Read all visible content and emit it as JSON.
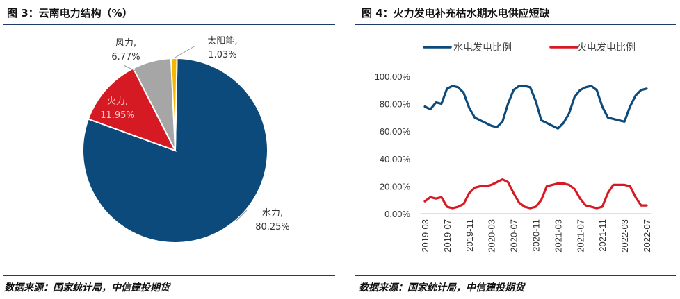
{
  "left_panel": {
    "title": "图 3：云南电力结构（%）",
    "source": "数据来源：国家统计局，中信建投期货"
  },
  "right_panel": {
    "title": "图 4：火力发电补充枯水期水电供应短缺",
    "source": "数据来源：国家统计局，中信建投期货"
  },
  "chart_data": [
    {
      "type": "pie",
      "title": "",
      "slices": [
        {
          "name": "水力",
          "value_label": "80.25%",
          "value": 80.25,
          "color": "#0b4a7a"
        },
        {
          "name": "火力",
          "value_label": "11.95%",
          "value": 11.95,
          "color": "#d51a24"
        },
        {
          "name": "风力",
          "value_label": "6.77%",
          "value": 6.77,
          "color": "#a6a6a6"
        },
        {
          "name": "太阳能",
          "value_label": "1.03%",
          "value": 1.03,
          "color": "#f5b800"
        }
      ]
    },
    {
      "type": "line",
      "title": "",
      "legend_position": "top",
      "ylim": [
        0,
        100
      ],
      "y_ticks": [
        {
          "value": 0,
          "label": "0.00%"
        },
        {
          "value": 20,
          "label": "20.00%"
        },
        {
          "value": 40,
          "label": "40.00%"
        },
        {
          "value": 60,
          "label": "60.00%"
        },
        {
          "value": 80,
          "label": "80.00%"
        },
        {
          "value": 100,
          "label": "100.00%"
        }
      ],
      "x": [
        "2019-03",
        "2019-04",
        "2019-05",
        "2019-06",
        "2019-07",
        "2019-08",
        "2019-09",
        "2019-10",
        "2019-11",
        "2019-12",
        "2020-01",
        "2020-02",
        "2020-03",
        "2020-04",
        "2020-05",
        "2020-06",
        "2020-07",
        "2020-08",
        "2020-09",
        "2020-10",
        "2020-11",
        "2020-12",
        "2021-01",
        "2021-02",
        "2021-03",
        "2021-04",
        "2021-05",
        "2021-06",
        "2021-07",
        "2021-08",
        "2021-09",
        "2021-10",
        "2021-11",
        "2021-12",
        "2022-01",
        "2022-02",
        "2022-03",
        "2022-04",
        "2022-05",
        "2022-06",
        "2022-07"
      ],
      "x_ticks": [
        "2019-03",
        "2019-07",
        "2019-11",
        "2020-03",
        "2020-07",
        "2020-11",
        "2021-03",
        "2021-07",
        "2021-11",
        "2022-03",
        "2022-07"
      ],
      "series": [
        {
          "name": "水电发电比例",
          "color": "#0b4a7a",
          "values": [
            78,
            76,
            81,
            80,
            91,
            93,
            92,
            88,
            77,
            70,
            68,
            66,
            64,
            63,
            67,
            80,
            90,
            93,
            93,
            92,
            82,
            68,
            66,
            64,
            62,
            66,
            73,
            85,
            90,
            92,
            93,
            90,
            78,
            70,
            69,
            68,
            67,
            78,
            86,
            90,
            91
          ]
        },
        {
          "name": "火电发电比例",
          "color": "#d51a24",
          "values": [
            9,
            12,
            11,
            12,
            5,
            4,
            5,
            7,
            15,
            19,
            20,
            20,
            21,
            23,
            25,
            23,
            15,
            8,
            5,
            4,
            5,
            10,
            20,
            21,
            22,
            22,
            21,
            18,
            11,
            6,
            5,
            4,
            5,
            15,
            21,
            21,
            21,
            20,
            12,
            6,
            6
          ]
        }
      ]
    }
  ]
}
